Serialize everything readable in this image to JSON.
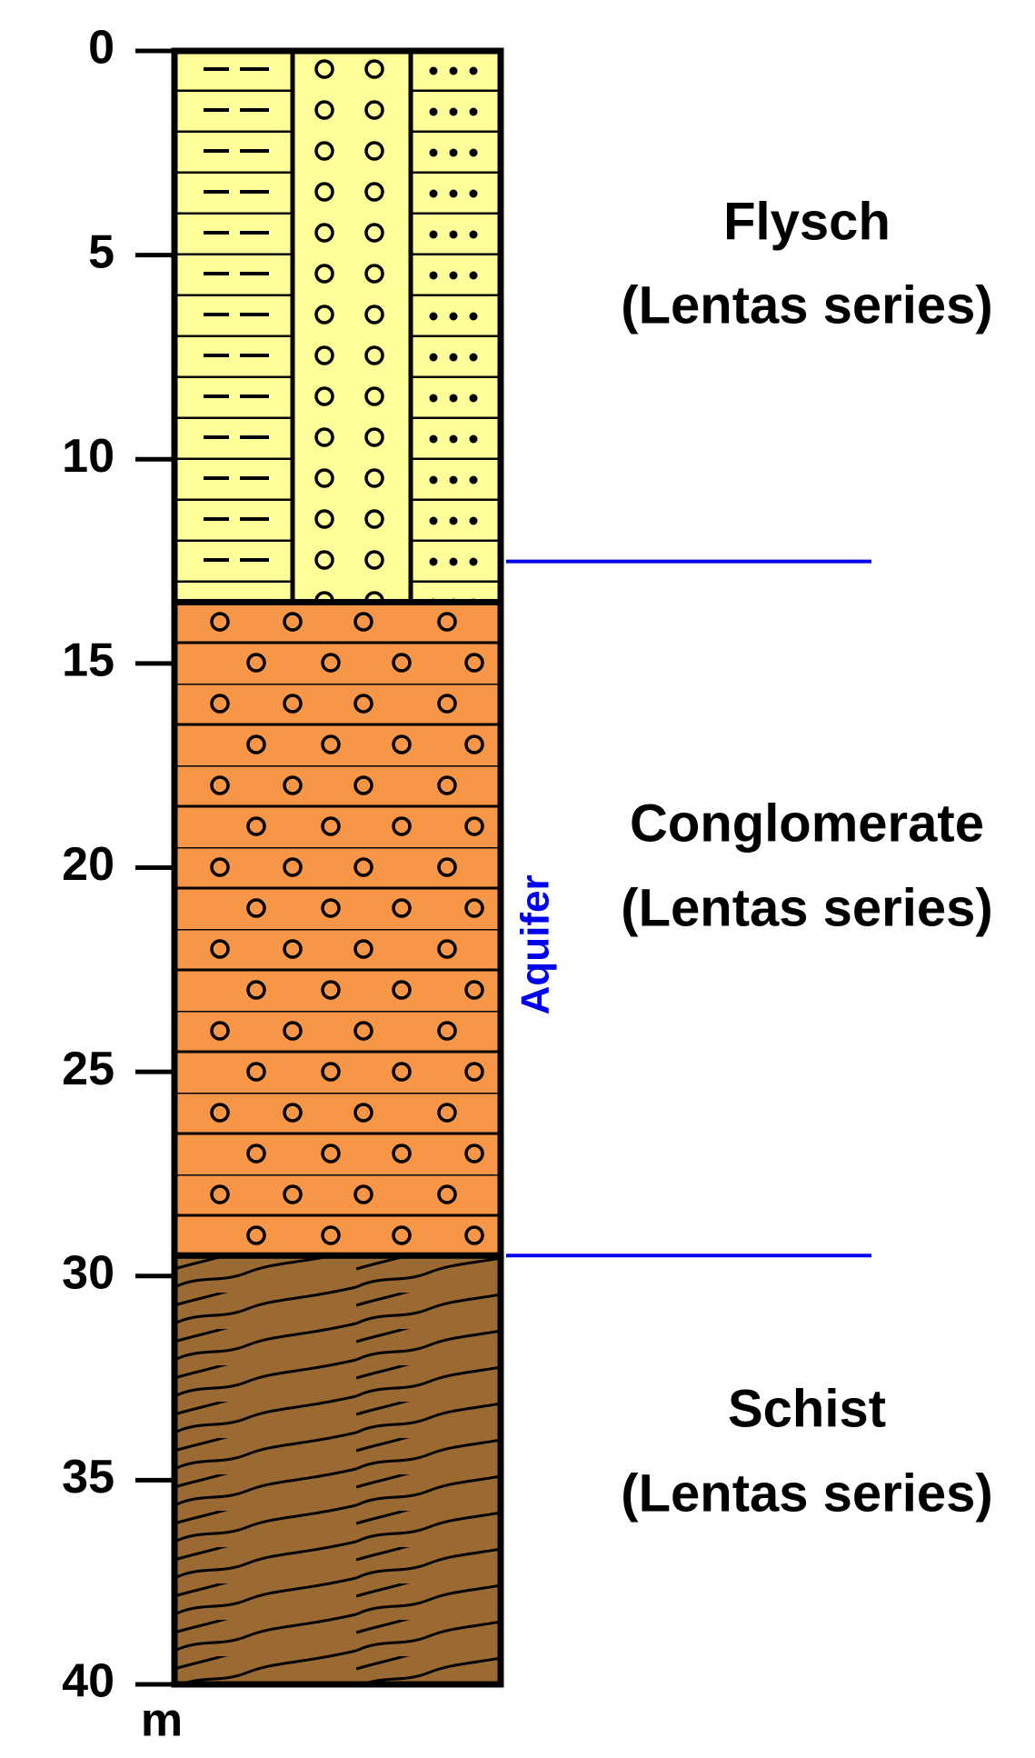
{
  "depth_axis": {
    "min": 0,
    "max": 40,
    "ticks": [
      0,
      5,
      10,
      15,
      20,
      25,
      30,
      35,
      40
    ],
    "unit": "m"
  },
  "layers": [
    {
      "name": "Flysch",
      "series": "(Lentas series)",
      "top": 0,
      "bottom": 13.5
    },
    {
      "name": "Conglomerate",
      "series": "(Lentas series)",
      "top": 13.5,
      "bottom": 29.5
    },
    {
      "name": "Schist",
      "series": "(Lentas series)",
      "top": 29.5,
      "bottom": 40
    }
  ],
  "aquifer": {
    "label": "Aquifer",
    "top": 12.5,
    "bottom": 29.5
  }
}
